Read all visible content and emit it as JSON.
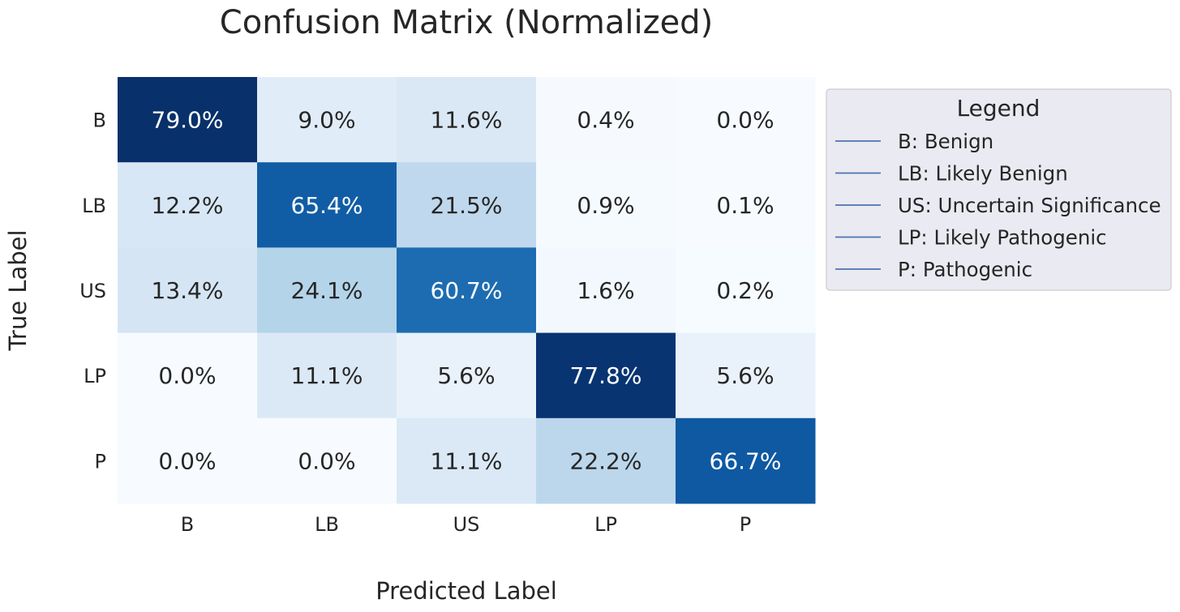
{
  "chart_data": {
    "type": "heatmap",
    "title": "Confusion Matrix (Normalized)",
    "xlabel": "Predicted Label",
    "ylabel": "True Label",
    "x_categories": [
      "B",
      "LB",
      "US",
      "LP",
      "P"
    ],
    "y_categories": [
      "B",
      "LB",
      "US",
      "LP",
      "P"
    ],
    "values": [
      [
        79.0,
        9.0,
        11.6,
        0.4,
        0.0
      ],
      [
        12.2,
        65.4,
        21.5,
        0.9,
        0.1
      ],
      [
        13.4,
        24.1,
        60.7,
        1.6,
        0.2
      ],
      [
        0.0,
        11.1,
        5.6,
        77.8,
        5.6
      ],
      [
        0.0,
        0.0,
        11.1,
        22.2,
        66.7
      ]
    ],
    "value_format": "percent_1dp",
    "colormap": "Blues",
    "value_range": [
      0,
      79.0
    ],
    "colorbar": false,
    "legend": {
      "title": "Legend",
      "placement": "outside-right-top",
      "line_color": "#4c72b0",
      "entries": [
        "B: Benign",
        "LB: Likely Benign",
        "US: Uncertain Significance",
        "LP: Likely Pathogenic",
        "P: Pathogenic"
      ]
    }
  }
}
